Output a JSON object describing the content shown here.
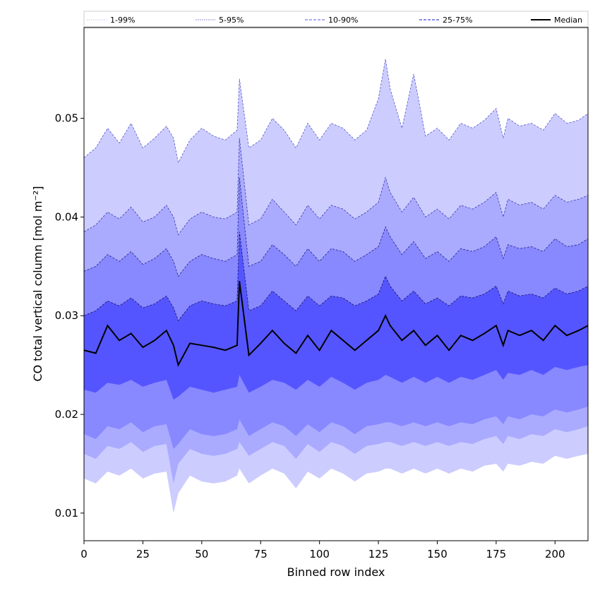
{
  "chart_data": {
    "type": "area",
    "xlabel": "Binned row index",
    "ylabel": "CO total vertical column [mol m⁻²]",
    "xlim": [
      0,
      214
    ],
    "ylim": [
      0.0072,
      0.0592
    ],
    "xticks": [
      0,
      25,
      50,
      75,
      100,
      125,
      150,
      175,
      200
    ],
    "yticks": [
      0.01,
      0.02,
      0.03,
      0.04,
      0.05
    ],
    "ytick_labels": [
      "0.01",
      "0.02",
      "0.03",
      "0.04",
      "0.05"
    ],
    "grid": false,
    "legend_placement": "top (full width, single row)",
    "x_sampling": "integer row index 0 to 214, values read approximately at every 5th index",
    "x": [
      0,
      5,
      10,
      15,
      20,
      25,
      30,
      35,
      38,
      40,
      45,
      50,
      55,
      60,
      65,
      66,
      70,
      75,
      80,
      85,
      90,
      95,
      100,
      105,
      110,
      115,
      120,
      125,
      128,
      130,
      135,
      140,
      145,
      150,
      155,
      160,
      165,
      170,
      175,
      178,
      180,
      185,
      190,
      195,
      200,
      205,
      210,
      214
    ],
    "series": [
      {
        "name": "Median",
        "color": "#000000",
        "values": [
          0.0265,
          0.0262,
          0.029,
          0.0275,
          0.0282,
          0.0268,
          0.0275,
          0.0285,
          0.027,
          0.025,
          0.0272,
          0.027,
          0.0268,
          0.0265,
          0.027,
          0.0335,
          0.026,
          0.0272,
          0.0285,
          0.0272,
          0.0262,
          0.028,
          0.0265,
          0.0285,
          0.0275,
          0.0265,
          0.0275,
          0.0285,
          0.03,
          0.029,
          0.0275,
          0.0285,
          0.027,
          0.028,
          0.0265,
          0.028,
          0.0275,
          0.0282,
          0.029,
          0.027,
          0.0285,
          0.028,
          0.0285,
          0.0275,
          0.029,
          0.028,
          0.0285,
          0.029
        ]
      },
      {
        "name": "25-75%",
        "color": "#5555ff",
        "lower": [
          0.0225,
          0.0222,
          0.0232,
          0.023,
          0.0235,
          0.0228,
          0.0232,
          0.0235,
          0.0215,
          0.0218,
          0.0228,
          0.0225,
          0.0222,
          0.0225,
          0.0228,
          0.024,
          0.0222,
          0.0228,
          0.0235,
          0.0232,
          0.0225,
          0.0235,
          0.0228,
          0.0238,
          0.0232,
          0.0225,
          0.0232,
          0.0235,
          0.024,
          0.0238,
          0.0232,
          0.0238,
          0.0232,
          0.0238,
          0.0232,
          0.0238,
          0.0235,
          0.024,
          0.0245,
          0.0235,
          0.0242,
          0.024,
          0.0245,
          0.024,
          0.0248,
          0.0245,
          0.0248,
          0.025
        ],
        "upper": [
          0.03,
          0.0305,
          0.0315,
          0.031,
          0.0318,
          0.0308,
          0.0312,
          0.032,
          0.0308,
          0.0295,
          0.031,
          0.0315,
          0.0312,
          0.031,
          0.0315,
          0.0385,
          0.0305,
          0.031,
          0.0325,
          0.0315,
          0.0305,
          0.032,
          0.031,
          0.032,
          0.0318,
          0.031,
          0.0315,
          0.0322,
          0.034,
          0.033,
          0.0315,
          0.0325,
          0.0312,
          0.0318,
          0.031,
          0.032,
          0.0318,
          0.0322,
          0.033,
          0.0312,
          0.0325,
          0.032,
          0.0322,
          0.0318,
          0.0328,
          0.0322,
          0.0325,
          0.033
        ]
      },
      {
        "name": "10-90%",
        "color": "#8888ff",
        "lower": [
          0.018,
          0.0175,
          0.0188,
          0.0185,
          0.0192,
          0.0182,
          0.0188,
          0.019,
          0.0165,
          0.017,
          0.0185,
          0.018,
          0.0178,
          0.018,
          0.0185,
          0.0195,
          0.0178,
          0.0185,
          0.0192,
          0.0188,
          0.0178,
          0.019,
          0.0182,
          0.0192,
          0.0188,
          0.018,
          0.0188,
          0.019,
          0.0192,
          0.0192,
          0.0188,
          0.0192,
          0.0188,
          0.0192,
          0.0188,
          0.0192,
          0.019,
          0.0195,
          0.0198,
          0.019,
          0.0198,
          0.0195,
          0.02,
          0.0198,
          0.0205,
          0.0202,
          0.0205,
          0.0208
        ],
        "upper": [
          0.0345,
          0.035,
          0.0362,
          0.0355,
          0.0365,
          0.0352,
          0.0358,
          0.0368,
          0.0355,
          0.034,
          0.0355,
          0.0362,
          0.0358,
          0.0355,
          0.0362,
          0.044,
          0.035,
          0.0355,
          0.0372,
          0.0362,
          0.035,
          0.0368,
          0.0355,
          0.0368,
          0.0365,
          0.0355,
          0.0362,
          0.037,
          0.039,
          0.038,
          0.0362,
          0.0375,
          0.0358,
          0.0365,
          0.0355,
          0.0368,
          0.0365,
          0.037,
          0.038,
          0.0358,
          0.0372,
          0.0368,
          0.037,
          0.0365,
          0.0378,
          0.037,
          0.0372,
          0.0378
        ]
      },
      {
        "name": "5-95%",
        "color": "#aaaaff",
        "lower": [
          0.016,
          0.0155,
          0.0168,
          0.0165,
          0.0172,
          0.0162,
          0.0168,
          0.017,
          0.013,
          0.015,
          0.0165,
          0.016,
          0.0158,
          0.016,
          0.0165,
          0.0172,
          0.0158,
          0.0165,
          0.0172,
          0.0168,
          0.0155,
          0.017,
          0.0162,
          0.0172,
          0.0168,
          0.016,
          0.0168,
          0.017,
          0.0172,
          0.0172,
          0.0168,
          0.0172,
          0.0168,
          0.0172,
          0.0168,
          0.0172,
          0.017,
          0.0175,
          0.0178,
          0.017,
          0.0178,
          0.0175,
          0.018,
          0.0178,
          0.0185,
          0.0182,
          0.0185,
          0.0188
        ],
        "upper": [
          0.0385,
          0.0392,
          0.0405,
          0.0398,
          0.041,
          0.0395,
          0.04,
          0.0412,
          0.04,
          0.0382,
          0.0398,
          0.0405,
          0.04,
          0.0398,
          0.0405,
          0.048,
          0.0392,
          0.0398,
          0.0418,
          0.0405,
          0.0392,
          0.0412,
          0.0398,
          0.0412,
          0.0408,
          0.0398,
          0.0405,
          0.0415,
          0.044,
          0.0425,
          0.0405,
          0.042,
          0.04,
          0.0408,
          0.0398,
          0.0412,
          0.0408,
          0.0415,
          0.0425,
          0.04,
          0.0418,
          0.0412,
          0.0415,
          0.0408,
          0.0422,
          0.0415,
          0.0418,
          0.0422
        ]
      },
      {
        "name": "1-99%",
        "color": "#ccccff",
        "lower": [
          0.0135,
          0.013,
          0.0142,
          0.0138,
          0.0145,
          0.0135,
          0.014,
          0.0142,
          0.01,
          0.012,
          0.0138,
          0.0132,
          0.013,
          0.0132,
          0.0138,
          0.0145,
          0.013,
          0.0138,
          0.0145,
          0.014,
          0.0125,
          0.0142,
          0.0135,
          0.0145,
          0.014,
          0.0132,
          0.014,
          0.0142,
          0.0145,
          0.0145,
          0.014,
          0.0145,
          0.014,
          0.0145,
          0.014,
          0.0145,
          0.0142,
          0.0148,
          0.015,
          0.0142,
          0.015,
          0.0148,
          0.0152,
          0.015,
          0.0158,
          0.0155,
          0.0158,
          0.016
        ],
        "upper": [
          0.046,
          0.047,
          0.049,
          0.0475,
          0.0495,
          0.047,
          0.048,
          0.0492,
          0.048,
          0.0455,
          0.0478,
          0.049,
          0.0482,
          0.0478,
          0.0488,
          0.054,
          0.047,
          0.0478,
          0.05,
          0.0488,
          0.047,
          0.0495,
          0.0478,
          0.0495,
          0.049,
          0.0478,
          0.0488,
          0.052,
          0.056,
          0.053,
          0.049,
          0.0545,
          0.0482,
          0.049,
          0.0478,
          0.0495,
          0.049,
          0.0498,
          0.051,
          0.048,
          0.05,
          0.0492,
          0.0495,
          0.0488,
          0.0505,
          0.0495,
          0.0498,
          0.0505
        ]
      }
    ],
    "legend": [
      {
        "label": "1-99%",
        "color": "#d0d0ff",
        "style": "dotted"
      },
      {
        "label": "5-95%",
        "color": "#8a8ad0",
        "style": "dotted"
      },
      {
        "label": "10-90%",
        "color": "#7777ee",
        "style": "dashed"
      },
      {
        "label": "25-75%",
        "color": "#4444dd",
        "style": "dashed"
      },
      {
        "label": "Median",
        "color": "#000000",
        "style": "solid"
      }
    ]
  }
}
